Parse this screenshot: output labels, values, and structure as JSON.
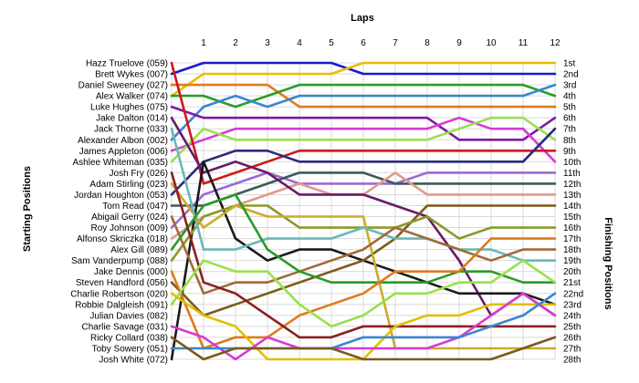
{
  "chart_data": {
    "type": "line",
    "title": "",
    "xlabel": "Laps",
    "ylabel_left": "Starting Positions",
    "ylabel_right": "Finishing Positions",
    "x": [
      0,
      1,
      2,
      3,
      4,
      5,
      6,
      7,
      8,
      9,
      10,
      11,
      12
    ],
    "x_tick_labels": [
      "1",
      "2",
      "3",
      "4",
      "5",
      "6",
      "7",
      "8",
      "9",
      "10",
      "11",
      "12"
    ],
    "ylim": [
      1,
      28
    ],
    "y_inverted": true,
    "grid": true,
    "left_labels": [
      "Hazz Truelove (059)",
      "Brett Wykes (007)",
      "Daniel Sweeney (027)",
      "Alex Walker (074)",
      "Luke Hughes (075)",
      "Jake Dalton (014)",
      "Jack Thorne (033)",
      "Alexander Albon (002)",
      "James Appleton (006)",
      "Ashlee Whiteman (035)",
      "Josh Fry (026)",
      "Adam Stirling (023)",
      "Jordan Houghton (053)",
      "Tom Read (047)",
      "Abigail Gerry (024)",
      "Roy Johnson (009)",
      "Alfonso Skriczka (018)",
      "Alex Gill (089)",
      "Sam Vanderpump (088)",
      "Jake Dennis (000)",
      "Steven Handford (056)",
      "Charlie Robertson (020)",
      "Robbie Dalgleish (091)",
      "Julian Davies (082)",
      "Charlie Savage (031)",
      "Ricky Collard (038)",
      "Toby Sowery (051)",
      "Josh White (072)"
    ],
    "right_labels": [
      "1st",
      "2nd",
      "3rd",
      "4th",
      "5th",
      "6th",
      "7th",
      "8th",
      "9th",
      "10th",
      "11th",
      "12th",
      "13th",
      "14th",
      "15th",
      "16th",
      "17th",
      "18th",
      "19th",
      "20th",
      "21st",
      "22nd",
      "23rd",
      "24th",
      "25th",
      "26th",
      "27th",
      "28th"
    ],
    "series": [
      {
        "color": "#1a1acc",
        "values": [
          2,
          1,
          1,
          1,
          1,
          1,
          2,
          2,
          2,
          2,
          2,
          2,
          2
        ]
      },
      {
        "color": "#e6c000",
        "values": [
          4,
          2,
          2,
          2,
          2,
          2,
          1,
          1,
          1,
          1,
          1,
          1,
          1
        ]
      },
      {
        "color": "#e07a1c",
        "values": [
          3,
          3,
          3,
          3,
          5,
          5,
          5,
          5,
          5,
          5,
          5,
          5,
          5
        ]
      },
      {
        "color": "#2d9b2d",
        "values": [
          4,
          4,
          5,
          4,
          3,
          3,
          3,
          3,
          3,
          3,
          3,
          3,
          4
        ]
      },
      {
        "color": "#3a86d0",
        "values": [
          8,
          5,
          4,
          5,
          4,
          4,
          4,
          4,
          4,
          4,
          4,
          4,
          3
        ]
      },
      {
        "color": "#7d1aa0",
        "values": [
          5,
          6,
          6,
          6,
          6,
          6,
          6,
          6,
          6,
          8,
          8,
          8,
          6
        ]
      },
      {
        "color": "#d63ad6",
        "values": [
          9,
          8,
          7,
          7,
          7,
          7,
          7,
          7,
          7,
          6,
          7,
          7,
          10
        ]
      },
      {
        "color": "#9ae04a",
        "values": [
          10,
          7,
          8,
          8,
          8,
          8,
          8,
          8,
          8,
          7,
          6,
          6,
          8
        ]
      },
      {
        "color": "#cc1a1a",
        "values": [
          1,
          12,
          11,
          10,
          9,
          9,
          9,
          9,
          9,
          9,
          9,
          9,
          9
        ]
      },
      {
        "color": "#2a2a7a",
        "values": [
          13,
          10,
          9,
          9,
          10,
          10,
          10,
          10,
          10,
          10,
          10,
          10,
          7
        ]
      },
      {
        "color": "#9a6ad6",
        "values": [
          16,
          13,
          12,
          11,
          12,
          12,
          12,
          12,
          11,
          11,
          11,
          11,
          11
        ]
      },
      {
        "color": "#3d5a5a",
        "values": [
          14,
          14,
          13,
          12,
          11,
          11,
          11,
          12,
          12,
          12,
          12,
          12,
          12
        ]
      },
      {
        "color": "#e09a8a",
        "values": [
          17,
          15,
          14,
          13,
          12,
          13,
          13,
          11,
          13,
          13,
          13,
          13,
          13
        ]
      },
      {
        "color": "#6a1a6a",
        "values": [
          6,
          11,
          10,
          11,
          13,
          13,
          13,
          14,
          15,
          19,
          24,
          22,
          24
        ]
      },
      {
        "color": "#1a1a1a",
        "values": [
          28,
          10,
          17,
          19,
          18,
          18,
          19,
          20,
          21,
          22,
          22,
          22,
          23
        ]
      },
      {
        "color": "#7a5a1a",
        "values": [
          21,
          24,
          23,
          22,
          21,
          20,
          19,
          17,
          14,
          14,
          14,
          14,
          14
        ]
      },
      {
        "color": "#8a9a2a",
        "values": [
          19,
          15,
          14,
          14,
          16,
          16,
          16,
          16,
          15,
          17,
          16,
          16,
          16
        ]
      },
      {
        "color": "#ccaa2a",
        "values": [
          12,
          16,
          14,
          15,
          15,
          15,
          15,
          27,
          27,
          27,
          27,
          27,
          27
        ]
      },
      {
        "color": "#6ab8b8",
        "values": [
          7,
          18,
          18,
          17,
          17,
          17,
          16,
          17,
          17,
          18,
          18,
          19,
          19
        ]
      },
      {
        "color": "#a06a3a",
        "values": [
          15,
          22,
          21,
          21,
          20,
          19,
          18,
          16,
          17,
          18,
          19,
          18,
          18
        ]
      },
      {
        "color": "#2a9a2a",
        "values": [
          18,
          14,
          13,
          18,
          20,
          21,
          21,
          21,
          21,
          20,
          20,
          21,
          21
        ]
      },
      {
        "color": "#e07a1c",
        "values": [
          20,
          27,
          26,
          26,
          24,
          23,
          22,
          20,
          20,
          20,
          17,
          17,
          17
        ]
      },
      {
        "color": "#8a2020",
        "values": [
          11,
          21,
          22,
          24,
          26,
          26,
          25,
          25,
          25,
          25,
          25,
          25,
          25
        ]
      },
      {
        "color": "#9ae04a",
        "values": [
          23,
          19,
          20,
          20,
          23,
          25,
          24,
          22,
          22,
          21,
          21,
          19,
          21
        ]
      },
      {
        "color": "#e0c000",
        "values": [
          22,
          24,
          25,
          28,
          28,
          28,
          28,
          25,
          24,
          24,
          23,
          23,
          23
        ]
      },
      {
        "color": "#d63ad6",
        "values": [
          25,
          26,
          28,
          26,
          27,
          27,
          27,
          27,
          27,
          26,
          24,
          22,
          24
        ]
      },
      {
        "color": "#3a86d0",
        "values": [
          27,
          27,
          27,
          27,
          27,
          27,
          26,
          26,
          26,
          26,
          25,
          24,
          22
        ]
      },
      {
        "color": "#7a5a1a",
        "values": [
          26,
          28,
          27,
          27,
          27,
          27,
          28,
          28,
          28,
          28,
          28,
          27,
          26
        ]
      }
    ]
  }
}
